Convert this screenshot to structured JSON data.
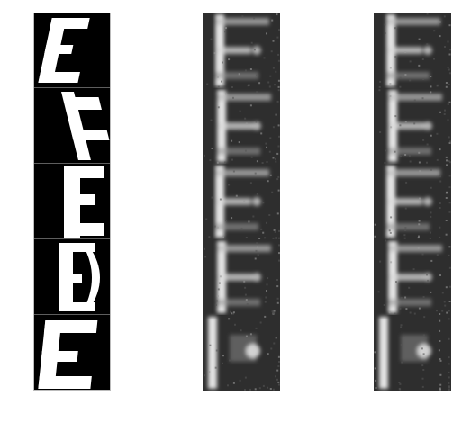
{
  "columns": [
    {
      "kind": "source-glyphs",
      "style": "crisp",
      "cells": [
        {
          "glyph": "E"
        },
        {
          "glyph": "E"
        },
        {
          "glyph": "E"
        },
        {
          "glyph": "E"
        },
        {
          "glyph": "E"
        }
      ]
    },
    {
      "kind": "reconstruction",
      "style": "blurry",
      "cells": [
        {},
        {},
        {},
        {},
        {}
      ]
    },
    {
      "kind": "reconstruction",
      "style": "blurry",
      "cells": [
        {},
        {},
        {},
        {},
        {}
      ]
    }
  ],
  "colors": {
    "background": "#ffffff",
    "cell_dark": "#000000",
    "recon_dark": "#2e2e2e",
    "glyph": "#ffffff",
    "recon_glyph": "#f2f2f2",
    "border": "#bbbbbb"
  }
}
